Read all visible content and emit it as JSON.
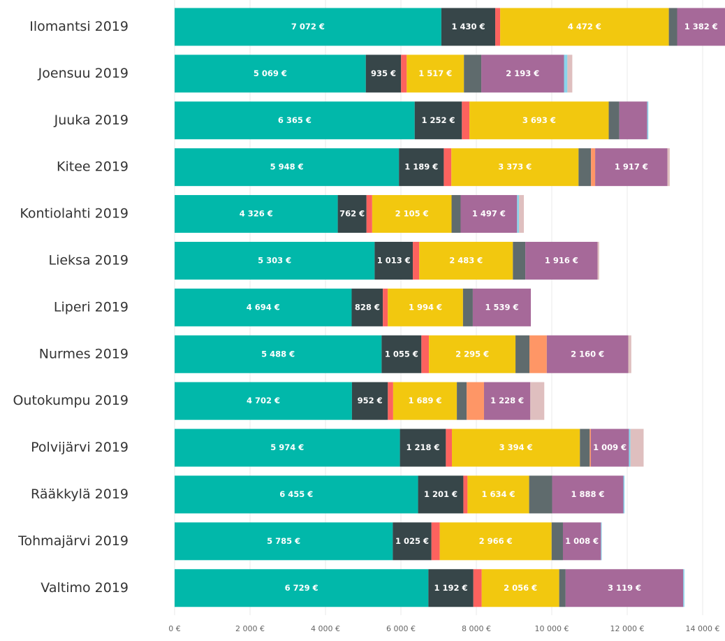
{
  "chart_data": {
    "type": "stacked-bar-horizontal",
    "categories": [
      "Ilomantsi 2019",
      "Joensuu 2019",
      "Juuka 2019",
      "Kitee 2019",
      "Kontiolahti 2019",
      "Lieksa 2019",
      "Liperi 2019",
      "Nurmes 2019",
      "Outokumpu 2019",
      "Polvijärvi 2019",
      "Rääkkylä 2019",
      "Tohmajärvi 2019",
      "Valtimo 2019"
    ],
    "series": [
      {
        "color": "#01b8aa",
        "values": [
          7072,
          5069,
          6365,
          5948,
          4326,
          5303,
          4694,
          5488,
          4702,
          5974,
          6455,
          5785,
          6729
        ],
        "value_labels": [
          "7 072 €",
          "5 069 €",
          "6 365 €",
          "5 948 €",
          "4 326 €",
          "5 303 €",
          "4 694 €",
          "5 488 €",
          "4 702 €",
          "5 974 €",
          "6 455 €",
          "5 785 €",
          "6 729 €"
        ]
      },
      {
        "color": "#374649",
        "values": [
          1430,
          935,
          1252,
          1189,
          762,
          1013,
          828,
          1055,
          952,
          1218,
          1201,
          1025,
          1192
        ],
        "value_labels": [
          "1 430 €",
          "935 €",
          "1 252 €",
          "1 189 €",
          "762 €",
          "1 013 €",
          "828 €",
          "1 055 €",
          "952 €",
          "1 218 €",
          "1 201 €",
          "1 025 €",
          "1 192 €"
        ]
      },
      {
        "color": "#fd625e",
        "values": [
          130,
          150,
          200,
          200,
          150,
          170,
          130,
          200,
          140,
          160,
          110,
          220,
          220
        ]
      },
      {
        "color": "#f2c80f",
        "values": [
          4472,
          1517,
          3693,
          3373,
          2105,
          2483,
          1994,
          2295,
          1689,
          3394,
          1634,
          2966,
          2056
        ],
        "value_labels": [
          "4 472 €",
          "1 517 €",
          "3 693 €",
          "3 373 €",
          "2 105 €",
          "2 483 €",
          "1 994 €",
          "2 295 €",
          "1 689 €",
          "3 394 €",
          "1 634 €",
          "2 966 €",
          "2 056 €"
        ]
      },
      {
        "color": "#5f6b6d",
        "values": [
          220,
          460,
          280,
          330,
          240,
          330,
          260,
          370,
          260,
          260,
          610,
          300,
          170
        ]
      },
      {
        "color": "#fe9666",
        "values": [
          null,
          null,
          null,
          110,
          null,
          null,
          null,
          460,
          460,
          30,
          null,
          null,
          null
        ]
      },
      {
        "color": "#a66999",
        "values": [
          1382,
          2193,
          740,
          1917,
          1497,
          1916,
          1539,
          2160,
          1228,
          1009,
          1888,
          1008,
          3119
        ],
        "value_labels": [
          "1 382 €",
          "2 193 €",
          null,
          "1 917 €",
          "1 497 €",
          "1 916 €",
          "1 539 €",
          "2 160 €",
          "1 228 €",
          "1 009 €",
          "1 888 €",
          "1 008 €",
          "3 119 €"
        ]
      },
      {
        "color": "#8ad4eb",
        "values": [
          null,
          90,
          30,
          null,
          50,
          null,
          null,
          null,
          null,
          40,
          30,
          20,
          30
        ]
      },
      {
        "color": "#dfbfbf",
        "values": [
          null,
          130,
          null,
          60,
          130,
          40,
          null,
          80,
          370,
          350,
          null,
          null,
          null
        ]
      }
    ],
    "xlim": [
      0,
      14500
    ],
    "xticks": [
      {
        "value": 0,
        "label": "0 €"
      },
      {
        "value": 2000,
        "label": "2 000 €"
      },
      {
        "value": 4000,
        "label": "4 000 €"
      },
      {
        "value": 6000,
        "label": "6 000 €"
      },
      {
        "value": 8000,
        "label": "8 000 €"
      },
      {
        "value": 10000,
        "label": "10 000 €"
      },
      {
        "value": 12000,
        "label": "12 000 €"
      },
      {
        "value": 14000,
        "label": "14 000 €"
      }
    ],
    "grid": true
  }
}
